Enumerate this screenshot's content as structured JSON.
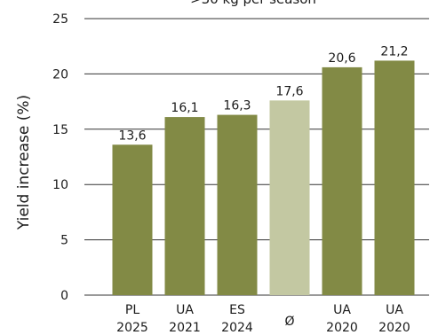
{
  "chart_data": {
    "type": "bar",
    "title": ">30 kg per season",
    "ylabel": "Yield increase (%)",
    "xlabel": "",
    "ylim": [
      0,
      25
    ],
    "yticks": [
      0,
      5,
      10,
      15,
      20,
      25
    ],
    "grid": true,
    "legend": "none",
    "categories": [
      [
        "PL",
        "2025"
      ],
      [
        "UA",
        "2021"
      ],
      [
        "ES",
        "2024"
      ],
      [
        "Ø",
        ""
      ],
      [
        "UA",
        "2020"
      ],
      [
        "UA",
        "2020"
      ]
    ],
    "values": [
      13.6,
      16.1,
      16.3,
      17.6,
      20.6,
      21.2
    ],
    "value_labels": [
      "13,6",
      "16,1",
      "16,3",
      "17,6",
      "20,6",
      "21,2"
    ],
    "highlight_index": 3,
    "colors": {
      "bar": "#828a45",
      "highlight": "#c3c8a2",
      "grid": "#333333"
    }
  }
}
